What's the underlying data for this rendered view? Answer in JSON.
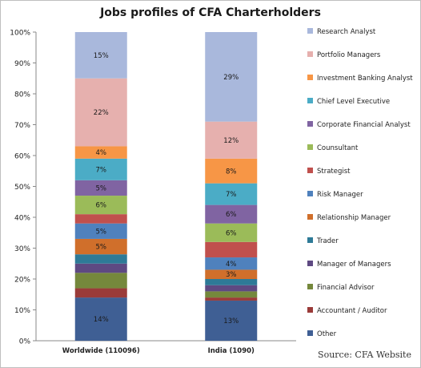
{
  "chart_data": {
    "type": "bar",
    "stacked": true,
    "percent": true,
    "title": "Jobs profiles of CFA Charterholders",
    "source": "Source: CFA Website",
    "categories": [
      "Worldwide (110096)",
      "India (1090)"
    ],
    "ylim": [
      0,
      100
    ],
    "yticks": [
      "0%",
      "10%",
      "20%",
      "30%",
      "40%",
      "50%",
      "60%",
      "70%",
      "80%",
      "90%",
      "100%"
    ],
    "legend_position": "right",
    "series": [
      {
        "name": "Other",
        "color": "#3f5f94",
        "values": [
          14,
          13
        ],
        "labels": [
          "14%",
          "13%"
        ]
      },
      {
        "name": "Accountant / Auditor",
        "color": "#9a3b39",
        "values": [
          3,
          1
        ],
        "labels": [
          "",
          ""
        ]
      },
      {
        "name": "Financial Advisor",
        "color": "#75883c",
        "values": [
          5,
          2
        ],
        "labels": [
          "",
          ""
        ]
      },
      {
        "name": "Manager of Managers",
        "color": "#5e4982",
        "values": [
          3,
          2
        ],
        "labels": [
          "",
          ""
        ]
      },
      {
        "name": "Trader",
        "color": "#2e7a97",
        "values": [
          3,
          2
        ],
        "labels": [
          "",
          ""
        ]
      },
      {
        "name": "Relationship Manager",
        "color": "#d06f2b",
        "values": [
          5,
          3
        ],
        "labels": [
          "5%",
          "3%"
        ]
      },
      {
        "name": "Risk Manager",
        "color": "#4f81bd",
        "values": [
          5,
          4
        ],
        "labels": [
          "5%",
          "4%"
        ]
      },
      {
        "name": "Strategist",
        "color": "#c0504d",
        "values": [
          3,
          5
        ],
        "labels": [
          "",
          ""
        ]
      },
      {
        "name": "Counsultant",
        "color": "#9bbb59",
        "values": [
          6,
          6
        ],
        "labels": [
          "6%",
          "6%"
        ]
      },
      {
        "name": "Corporate Financial Analyst",
        "color": "#8064a2",
        "values": [
          5,
          6
        ],
        "labels": [
          "5%",
          "6%"
        ]
      },
      {
        "name": "Chief Level Executive",
        "color": "#4bacc6",
        "values": [
          7,
          7
        ],
        "labels": [
          "7%",
          "7%"
        ]
      },
      {
        "name": "Investment Banking Analyst",
        "color": "#f79646",
        "values": [
          4,
          8
        ],
        "labels": [
          "4%",
          "8%"
        ]
      },
      {
        "name": "Portfolio Managers",
        "color": "#e6b0ae",
        "values": [
          22,
          12
        ],
        "labels": [
          "22%",
          "12%"
        ]
      },
      {
        "name": "Research Analyst",
        "color": "#a9b8dc",
        "values": [
          15,
          29
        ],
        "labels": [
          "15%",
          "29%"
        ]
      }
    ]
  }
}
